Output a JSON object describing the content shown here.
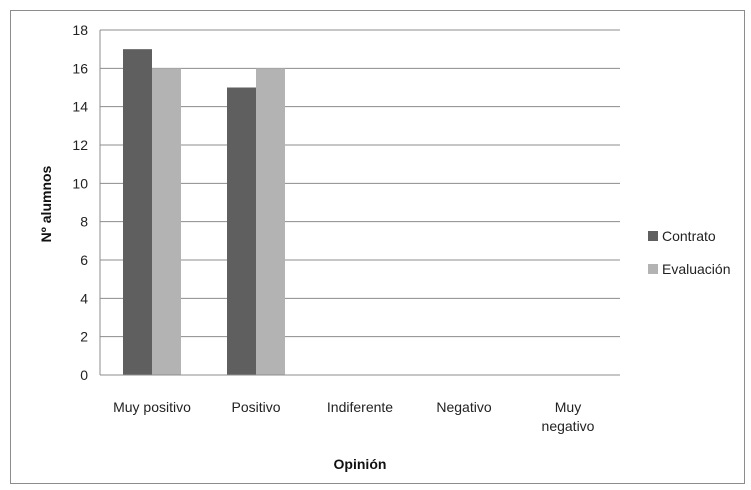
{
  "chart_data": {
    "type": "bar",
    "title": "",
    "xlabel": "Opinión",
    "ylabel": "Nº alumnos",
    "ylim": [
      0,
      18
    ],
    "yticks": [
      0,
      2,
      4,
      6,
      8,
      10,
      12,
      14,
      16,
      18
    ],
    "grid": true,
    "legend_position": "right",
    "categories": [
      "Muy positivo",
      "Positivo",
      "Indiferente",
      "Negativo",
      "Muy negativo"
    ],
    "category_lines": [
      [
        "Muy positivo"
      ],
      [
        "Positivo"
      ],
      [
        "Indiferente"
      ],
      [
        "Negativo"
      ],
      [
        "Muy",
        "negativo"
      ]
    ],
    "series": [
      {
        "name": "Contrato",
        "values": [
          17,
          15,
          0,
          0,
          0
        ],
        "color": "#5f5f5f"
      },
      {
        "name": "Evaluación",
        "values": [
          16,
          16,
          0,
          0,
          0
        ],
        "color": "#b3b3b3"
      }
    ]
  }
}
